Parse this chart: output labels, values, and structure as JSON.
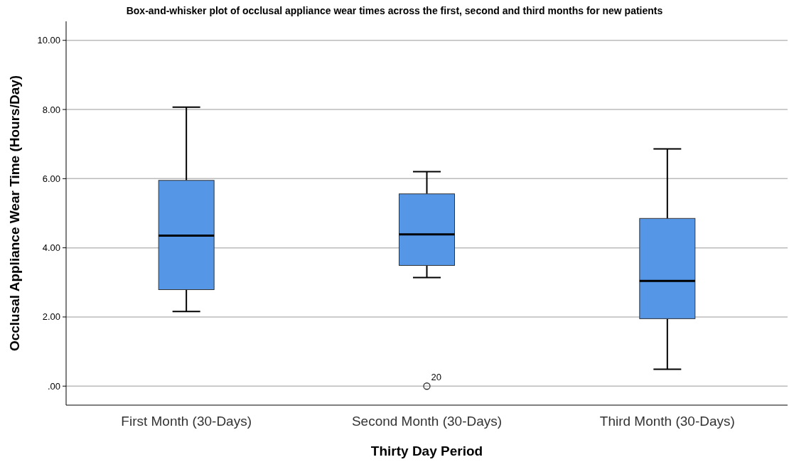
{
  "chart_data": {
    "type": "box",
    "title": "Box-and-whisker plot of occlusal appliance wear times across the first, second and third months for new patients",
    "xlabel": "Thirty Day Period",
    "ylabel": "Occlusal Appliance Wear Time (Hours/Day)",
    "categories": [
      "First Month (30-Days)",
      "Second Month (30-Days)",
      "Third Month (30-Days)"
    ],
    "color": "#5596e6",
    "boxes": [
      {
        "low": 2.16,
        "q1": 2.79,
        "median": 4.35,
        "q3": 5.95,
        "high": 8.07
      },
      {
        "low": 3.14,
        "q1": 3.49,
        "median": 4.39,
        "q3": 5.56,
        "high": 6.2,
        "outliers": [
          0
        ]
      },
      {
        "low": 0.49,
        "q1": 1.95,
        "median": 3.04,
        "q3": 4.85,
        "high": 6.86
      }
    ],
    "ylim": [
      -0.55,
      10.55
    ],
    "yticks": [
      {
        "value": 0,
        "label": ".00"
      },
      {
        "value": 2,
        "label": "2.00"
      },
      {
        "value": 4,
        "label": "4.00"
      },
      {
        "value": 6,
        "label": "6.00"
      },
      {
        "value": 8,
        "label": "8.00"
      },
      {
        "value": 10,
        "label": "10.00"
      }
    ],
    "grid": "y",
    "annotations": [
      "20"
    ]
  }
}
